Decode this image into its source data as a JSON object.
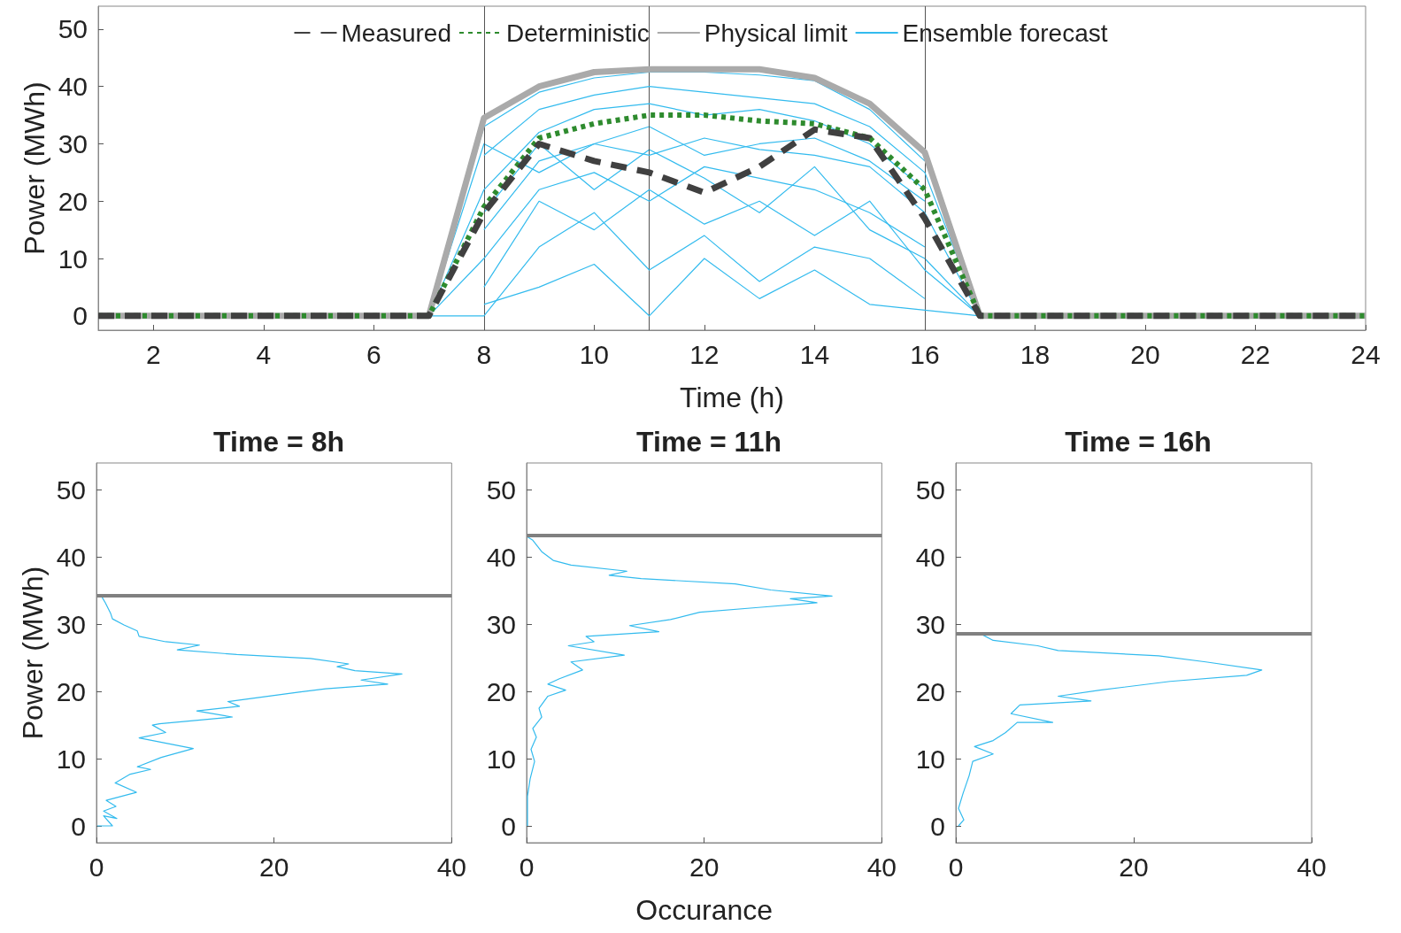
{
  "chart_data": [
    {
      "type": "line",
      "xlabel": "Time (h)",
      "ylabel": "Power (MWh)",
      "xlim": [
        1,
        24
      ],
      "xticks": [
        2,
        4,
        6,
        8,
        10,
        12,
        14,
        16,
        18,
        20,
        22,
        24
      ],
      "ylim": [
        -2.5,
        54
      ],
      "yticks": [
        0,
        10,
        20,
        30,
        40,
        50
      ],
      "grid": false,
      "legend": "top",
      "marker": "none",
      "ref_lines": [
        {
          "axis": "x",
          "value": 8,
          "color": "#555555"
        },
        {
          "axis": "x",
          "value": 11,
          "color": "#555555"
        },
        {
          "axis": "x",
          "value": 16,
          "color": "#555555"
        }
      ],
      "series": [
        {
          "name": "Measured",
          "color": "#404040",
          "line_style": "dashed",
          "x": [
            1,
            2,
            3,
            4,
            5,
            6,
            7,
            8,
            9,
            10,
            11,
            12,
            13,
            14,
            15,
            16,
            17,
            18,
            19,
            20,
            21,
            22,
            23,
            24
          ],
          "values": [
            0,
            0,
            0,
            0,
            0,
            0,
            0,
            18,
            30,
            27,
            25,
            21.5,
            26,
            32.5,
            31,
            17,
            0,
            0,
            0,
            0,
            0,
            0,
            0,
            0
          ]
        },
        {
          "name": "Deterministic",
          "color": "#2e8b2e",
          "line_style": "dotted",
          "x": [
            1,
            2,
            3,
            4,
            5,
            6,
            7,
            8,
            9,
            10,
            11,
            12,
            13,
            14,
            15,
            16,
            17,
            18,
            19,
            20,
            21,
            22,
            23,
            24
          ],
          "values": [
            0,
            0,
            0,
            0,
            0,
            0,
            0,
            19,
            31,
            33.5,
            35,
            35,
            34,
            33.5,
            31,
            22,
            0,
            0,
            0,
            0,
            0,
            0,
            0,
            0
          ]
        },
        {
          "name": "Physical limit",
          "color": "#aaaaaa",
          "line_style": "solid",
          "x": [
            1,
            2,
            3,
            4,
            5,
            6,
            7,
            8,
            9,
            10,
            11,
            12,
            13,
            14,
            15,
            16,
            17,
            18,
            19,
            20,
            21,
            22,
            23,
            24
          ],
          "values": [
            0,
            0,
            0,
            0,
            0,
            0,
            0,
            34.5,
            40,
            42.5,
            43,
            43,
            43,
            41.5,
            37,
            28.5,
            0,
            0,
            0,
            0,
            0,
            0,
            0,
            0
          ]
        },
        {
          "name": "Ensemble forecast",
          "color": "#33bbee",
          "x": [
            7,
            8,
            9,
            10,
            11,
            12,
            13,
            14,
            15,
            16
          ],
          "values": [
            0,
            33,
            39,
            41.5,
            42.5,
            42.5,
            42,
            41,
            36,
            27
          ]
        },
        {
          "color": "#33bbee",
          "x": [
            8,
            9,
            10,
            11,
            12,
            13,
            14,
            15,
            16,
            17
          ],
          "values": [
            28,
            36,
            38.5,
            40,
            39,
            38,
            37,
            33,
            25,
            0
          ]
        },
        {
          "color": "#33bbee",
          "x": [
            7,
            8,
            9,
            10,
            11,
            12,
            13,
            14,
            15,
            16
          ],
          "values": [
            0,
            22,
            32,
            36,
            37,
            35,
            36,
            34,
            30,
            22
          ]
        },
        {
          "color": "#33bbee",
          "x": [
            8,
            9,
            10,
            11,
            12,
            13,
            14,
            15,
            16,
            17
          ],
          "values": [
            15,
            27,
            30,
            28,
            31,
            29,
            28,
            26,
            18,
            0
          ]
        },
        {
          "color": "#33bbee",
          "x": [
            7,
            8,
            9,
            10,
            11,
            12,
            13,
            14,
            15,
            16
          ],
          "values": [
            0,
            10,
            22,
            25,
            20,
            26,
            24,
            22,
            18,
            12
          ]
        },
        {
          "color": "#33bbee",
          "x": [
            8,
            9,
            10,
            11,
            12,
            13,
            14,
            15,
            16,
            17
          ],
          "values": [
            5,
            20,
            15,
            22,
            16,
            20,
            14,
            20,
            8,
            0
          ]
        },
        {
          "color": "#33bbee",
          "x": [
            7,
            8,
            9,
            10,
            11,
            12,
            13,
            14,
            15,
            16
          ],
          "values": [
            0,
            0,
            12,
            18,
            8,
            14,
            6,
            12,
            10,
            3
          ]
        },
        {
          "color": "#33bbee",
          "x": [
            8,
            9,
            10,
            11,
            12,
            13,
            14,
            15,
            16,
            17
          ],
          "values": [
            2,
            5,
            9,
            0,
            10,
            3,
            8,
            2,
            1,
            0
          ]
        },
        {
          "color": "#33bbee",
          "x": [
            7,
            8,
            9,
            10,
            11,
            12,
            13,
            14,
            15,
            16
          ],
          "values": [
            0,
            30,
            25,
            30,
            33,
            28,
            30,
            31,
            27,
            20
          ]
        },
        {
          "color": "#33bbee",
          "x": [
            8,
            9,
            10,
            11,
            12,
            13,
            14,
            15,
            16,
            17
          ],
          "values": [
            18,
            30,
            22,
            29,
            24,
            18,
            26,
            15,
            10,
            0
          ]
        }
      ]
    },
    {
      "type": "line",
      "title": "Time = 8h",
      "ylabel": "Power (MWh)",
      "xlim": [
        0,
        40
      ],
      "xticks": [
        0,
        20,
        40
      ],
      "ylim": [
        -2.5,
        54
      ],
      "yticks": [
        0,
        10,
        20,
        30,
        40,
        50
      ],
      "grid": false,
      "marker": "none",
      "ref_lines": [
        {
          "axis": "y",
          "value": 34.3,
          "color": "#808080"
        }
      ],
      "series": [
        {
          "color": "#33bbee",
          "x": [
            0.1,
            1.8,
            0.8,
            2.3,
            0.8,
            2.2,
            1.1,
            4.5,
            2.1,
            3.8,
            6.1,
            4.6,
            7.3,
            10.9,
            4.8,
            7.8,
            6.3,
            7.1,
            15.3,
            11.3,
            16.1,
            14.8,
            22.8,
            25.8,
            32.8,
            29.8,
            34.4,
            29.1,
            27.1,
            28.4,
            24.1,
            15.8,
            9.1,
            11.6,
            7.8,
            4.8,
            4.6,
            3.1,
            1.8,
            1.6,
            1.0,
            0.6
          ],
          "values": [
            0,
            0,
            1.5,
            1.1,
            2.2,
            2.9,
            3.8,
            5.0,
            6.4,
            7.7,
            8.4,
            8.8,
            10.2,
            11.5,
            13.1,
            13.9,
            15,
            15.2,
            16.2,
            17.1,
            17.8,
            18.5,
            19.9,
            20.4,
            21.1,
            21.7,
            22.6,
            23.1,
            23.7,
            24.1,
            24.9,
            25.5,
            26.2,
            26.9,
            27.4,
            28.2,
            29.0,
            29.9,
            30.8,
            31.6,
            33.2,
            34.1
          ]
        }
      ]
    },
    {
      "type": "line",
      "title": "Time = 11h",
      "xlabel": "Occurance",
      "xlim": [
        0,
        40
      ],
      "xticks": [
        0,
        20,
        40
      ],
      "ylim": [
        -2.5,
        54
      ],
      "yticks": [
        0,
        10,
        20,
        30,
        40,
        50
      ],
      "grid": false,
      "marker": "none",
      "ref_lines": [
        {
          "axis": "y",
          "value": 43.2,
          "color": "#808080"
        }
      ],
      "series": [
        {
          "color": "#33bbee",
          "x": [
            0.1,
            0.1,
            0.4,
            0.9,
            0.5,
            1.1,
            0.7,
            1.7,
            1.4,
            2.4,
            4.4,
            2.4,
            3.7,
            6.3,
            5.0,
            11.0,
            4.7,
            7.6,
            6.7,
            14.9,
            11.6,
            16.2,
            19.5,
            26.1,
            32.7,
            29.7,
            34.4,
            27.5,
            23.5,
            12.9,
            9.3,
            11.3,
            5.0,
            3.0,
            1.7,
            0.7,
            0.1
          ],
          "values": [
            0,
            4.4,
            7.0,
            9.6,
            11.4,
            13.2,
            14.5,
            16.2,
            17.5,
            19.3,
            20.2,
            21.1,
            21.9,
            23.2,
            24.4,
            25.4,
            26.8,
            27.4,
            28.2,
            28.9,
            29.8,
            30.7,
            31.8,
            32.5,
            33.2,
            33.8,
            34.2,
            35.1,
            36.0,
            36.8,
            37.3,
            37.9,
            38.8,
            39.5,
            40.8,
            42.5,
            43.0
          ]
        }
      ]
    },
    {
      "type": "line",
      "title": "Time = 16h",
      "xlim": [
        0,
        40
      ],
      "xticks": [
        0,
        20,
        40
      ],
      "ylim": [
        -2.5,
        54
      ],
      "yticks": [
        0,
        10,
        20,
        30,
        40,
        50
      ],
      "grid": false,
      "marker": "none",
      "ref_lines": [
        {
          "axis": "y",
          "value": 28.6,
          "color": "#808080"
        }
      ],
      "series": [
        {
          "color": "#33bbee",
          "x": [
            0.3,
            0.9,
            0.3,
            0.8,
            1.5,
            1.9,
            4.2,
            2.1,
            4.2,
            5.6,
            6.9,
            10.9,
            6.2,
            7.2,
            15.2,
            11.5,
            16.2,
            24.1,
            32.7,
            34.4,
            28.1,
            22.8,
            11.5,
            9.2,
            4.2,
            2.9
          ],
          "values": [
            0,
            0.9,
            2.6,
            4.8,
            7.5,
            9.6,
            10.7,
            11.8,
            12.7,
            13.9,
            15.4,
            15.4,
            16.7,
            18.0,
            18.6,
            19.3,
            20.2,
            21.5,
            22.4,
            23.2,
            24.4,
            25.3,
            26.1,
            26.8,
            27.6,
            28.5
          ]
        }
      ]
    }
  ]
}
